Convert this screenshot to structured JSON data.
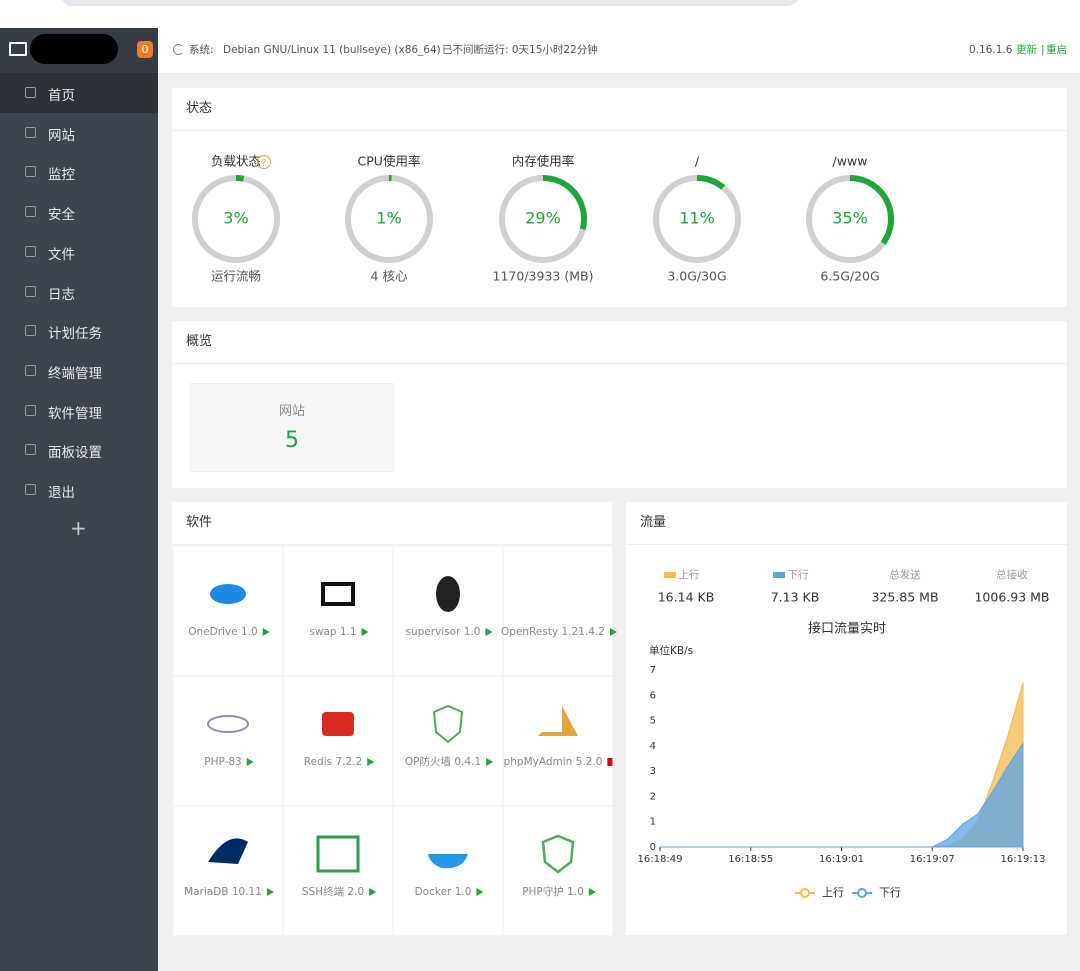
{
  "sidebar": {
    "badge": "0",
    "menu": [
      "首页",
      "网站",
      "监控",
      "安全",
      "文件",
      "日志",
      "计划任务",
      "终端管理",
      "软件管理",
      "面板设置",
      "退出"
    ],
    "add": "+"
  },
  "topbar": {
    "system_label": "系统:",
    "system": "Debian GNU/Linux 11 (bullseye) (x86_64)",
    "uptime": "已不间断运行: 0天15小时22分钟",
    "version": "0.16.1.6",
    "update": "更新",
    "separator": "|",
    "restart": "重启"
  },
  "status": {
    "title": "状态",
    "help": "?",
    "gauges": [
      {
        "label": "负载状态",
        "value": 3,
        "value_label": "3%",
        "detail": "运行流畅"
      },
      {
        "label": "CPU使用率",
        "value": 1,
        "value_label": "1%",
        "detail": "4 核心"
      },
      {
        "label": "内存使用率",
        "value": 29,
        "value_label": "29%",
        "detail": "1170/3933 (MB)"
      },
      {
        "label": "/",
        "value": 11,
        "value_label": "11%",
        "detail": "3.0G/30G"
      },
      {
        "label": "/www",
        "value": 35,
        "value_label": "35%",
        "detail": "6.5G/20G"
      }
    ]
  },
  "overview": {
    "title": "概览",
    "cards": [
      {
        "label": "网站",
        "value": 5
      }
    ]
  },
  "software": {
    "title": "软件",
    "items": [
      "OneDrive 1.0",
      "swap 1.1",
      "supervisor 1.0",
      "OpenResty 1.21.4.2",
      "PHP-83",
      "Redis 7.2.2",
      "OP防火墙 0.4.1",
      "phpMyAdmin 5.2.0",
      "MariaDB 10.11",
      "SSH终端 2.0",
      "Docker 1.0",
      "PHP守护 1.0"
    ]
  },
  "traffic": {
    "title": "流量",
    "stats": [
      {
        "label": "上行",
        "value": "16.14 KB"
      },
      {
        "label": "下行",
        "value": "7.13 KB"
      },
      {
        "label": "总发送",
        "value": "325.85 MB"
      },
      {
        "label": "总接收",
        "value": "1006.93 MB"
      }
    ]
  },
  "chart_data": {
    "type": "area",
    "title": "接口流量实时",
    "y_label": "单位KB/s",
    "categories": [
      "16:18:49",
      null,
      null,
      null,
      null,
      null,
      "16:18:55",
      null,
      null,
      null,
      null,
      null,
      "16:19:01",
      null,
      null,
      null,
      null,
      null,
      "16:19:07",
      null,
      null,
      null,
      null,
      null,
      "16:19:13"
    ],
    "series": [
      {
        "name": "上行",
        "color": "#f5b94f",
        "values": [
          0,
          0,
          0,
          0,
          0,
          0,
          0,
          0,
          0,
          0,
          0,
          0,
          0,
          0,
          0,
          0,
          0,
          0,
          0,
          0.05,
          0.3,
          1.0,
          2.6,
          4.4,
          6.5
        ]
      },
      {
        "name": "下行",
        "color": "#5ba4e8",
        "values": [
          0,
          0,
          0,
          0,
          0,
          0,
          0,
          0,
          0,
          0,
          0,
          0,
          0,
          0,
          0,
          0,
          0,
          0,
          0,
          0.3,
          0.9,
          1.3,
          2.2,
          3.2,
          4.1
        ]
      }
    ],
    "ylim": [
      0,
      7
    ],
    "yticks": [
      0,
      1,
      2,
      3,
      4,
      5,
      6,
      7
    ],
    "grid": false,
    "legend": "bottom"
  }
}
